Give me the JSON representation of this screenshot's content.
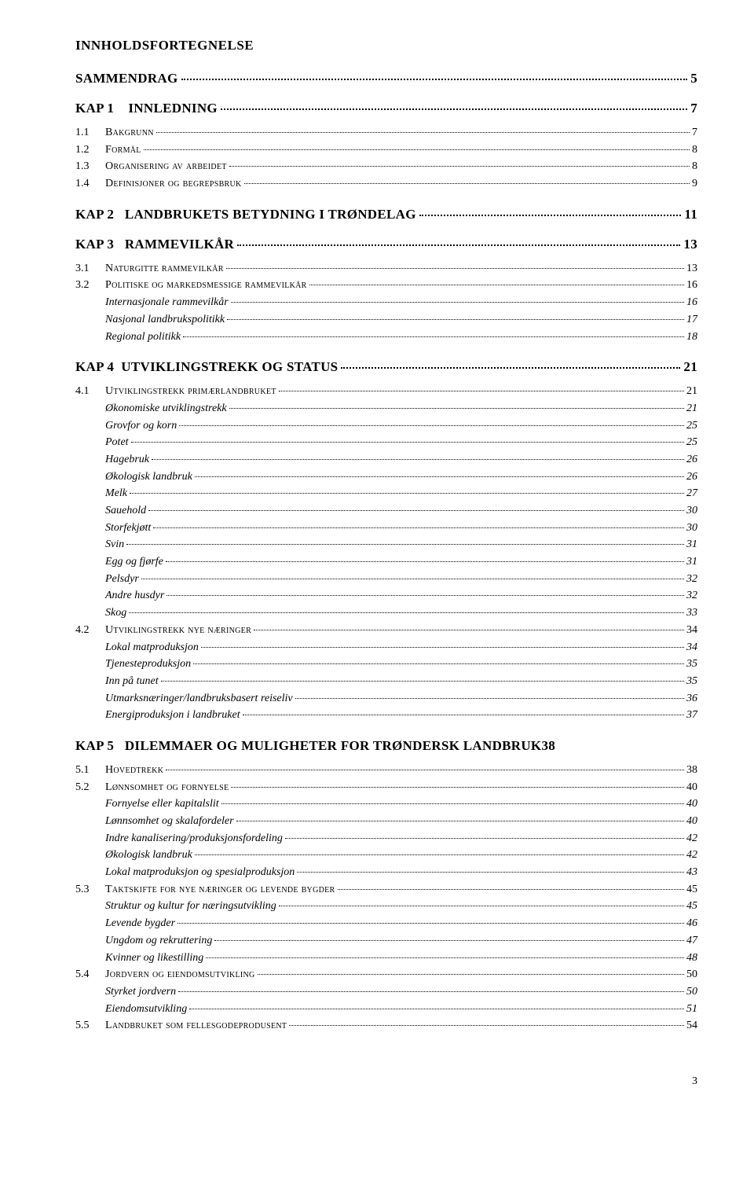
{
  "title": "INNHOLDSFORTEGNELSE",
  "sections": [
    {
      "kap_label": "SAMMENDRAG",
      "kap_full": "SAMMENDRAG",
      "page": "5",
      "plain": true,
      "entries": []
    },
    {
      "kap_label": "KAP 1    INNLEDNING",
      "page": "7",
      "entries": [
        {
          "type": "sec",
          "num": "1.1",
          "label_sc": "Bakgrunn",
          "page": "7"
        },
        {
          "type": "sec",
          "num": "1.2",
          "label_sc": "Formål",
          "page": "8"
        },
        {
          "type": "sec",
          "num": "1.3",
          "label_sc": "Organisering av arbeidet",
          "page": "8"
        },
        {
          "type": "sec",
          "num": "1.4",
          "label_sc": "Definisjoner og begrepsbruk",
          "page": "9"
        }
      ]
    },
    {
      "kap_label": "KAP 2   LANDBRUKETS BETYDNING I TRØNDELAG",
      "page": "11",
      "entries": []
    },
    {
      "kap_label": "KAP 3   RAMMEVILKÅR",
      "page": "13",
      "entries": [
        {
          "type": "sec",
          "num": "3.1",
          "label_sc": "Naturgitte rammevilkår",
          "page": "13"
        },
        {
          "type": "sec",
          "num": "3.2",
          "label_sc": "Politiske og markedsmessige rammevilkår",
          "page": "16"
        },
        {
          "type": "sub",
          "label": "Internasjonale rammevilkår",
          "page": "16"
        },
        {
          "type": "sub",
          "label": "Nasjonal landbrukspolitikk",
          "page": "17"
        },
        {
          "type": "sub",
          "label": "Regional politikk",
          "page": "18"
        }
      ]
    },
    {
      "kap_label": "KAP 4  UTVIKLINGSTREKK OG STATUS",
      "page": "21",
      "entries": [
        {
          "type": "sec",
          "num": "4.1",
          "label_sc": "Utviklingstrekk primærlandbruket",
          "page": "21"
        },
        {
          "type": "sub",
          "label": "Økonomiske utviklingstrekk",
          "page": "21"
        },
        {
          "type": "sub",
          "label": "Grovfor og korn",
          "page": "25"
        },
        {
          "type": "sub",
          "label": "Potet",
          "page": "25"
        },
        {
          "type": "sub",
          "label": "Hagebruk",
          "page": "26"
        },
        {
          "type": "sub",
          "label": "Økologisk landbruk",
          "page": "26"
        },
        {
          "type": "sub",
          "label": "Melk",
          "page": "27"
        },
        {
          "type": "sub",
          "label": "Sauehold",
          "page": "30"
        },
        {
          "type": "sub",
          "label": "Storfekjøtt",
          "page": "30"
        },
        {
          "type": "sub",
          "label": "Svin",
          "page": "31"
        },
        {
          "type": "sub",
          "label": "Egg og fjørfe",
          "page": "31"
        },
        {
          "type": "sub",
          "label": "Pelsdyr",
          "page": "32"
        },
        {
          "type": "sub",
          "label": "Andre husdyr",
          "page": "32"
        },
        {
          "type": "sub",
          "label": "Skog",
          "page": "33"
        },
        {
          "type": "sec",
          "num": "4.2",
          "label_sc": "Utviklingstrekk nye næringer",
          "page": "34"
        },
        {
          "type": "sub",
          "label": "Lokal matproduksjon",
          "page": "34"
        },
        {
          "type": "sub",
          "label": "Tjenesteproduksjon",
          "page": "35"
        },
        {
          "type": "sub",
          "label": "Inn på tunet",
          "page": "35"
        },
        {
          "type": "sub",
          "label": "Utmarksnæringer/landbruksbasert reiseliv",
          "page": "36"
        },
        {
          "type": "sub",
          "label": "Energiproduksjon i landbruket",
          "page": "37"
        }
      ]
    },
    {
      "kap_label": "KAP 5   DILEMMAER OG MULIGHETER FOR TRØNDERSK LANDBRUK",
      "page": "38",
      "nodots": true,
      "entries": [
        {
          "type": "sec",
          "num": "5.1",
          "label_sc": "Hovedtrekk",
          "page": "38"
        },
        {
          "type": "sec",
          "num": "5.2",
          "label_sc": "Lønnsomhet og fornyelse",
          "page": "40"
        },
        {
          "type": "sub",
          "label": "Fornyelse eller kapitalslit",
          "page": "40"
        },
        {
          "type": "sub",
          "label": "Lønnsomhet og skalafordeler",
          "page": "40"
        },
        {
          "type": "sub",
          "label": "Indre kanalisering/produksjonsfordeling",
          "page": "42"
        },
        {
          "type": "sub",
          "label": "Økologisk landbruk",
          "page": "42"
        },
        {
          "type": "sub",
          "label": "Lokal matproduksjon og spesialproduksjon",
          "page": "43"
        },
        {
          "type": "sec",
          "num": "5.3",
          "label_sc": "Taktskifte for nye næringer og levende bygder",
          "page": "45"
        },
        {
          "type": "sub",
          "label": "Struktur og kultur for næringsutvikling",
          "page": "45"
        },
        {
          "type": "sub",
          "label": "Levende bygder",
          "page": "46"
        },
        {
          "type": "sub",
          "label": "Ungdom og rekruttering",
          "page": "47"
        },
        {
          "type": "sub",
          "label": "Kvinner og likestilling",
          "page": "48"
        },
        {
          "type": "sec",
          "num": "5.4",
          "label_sc": "Jordvern og eiendomsutvikling",
          "page": "50"
        },
        {
          "type": "sub",
          "label": "Styrket jordvern",
          "page": "50"
        },
        {
          "type": "sub",
          "label": "Eiendomsutvikling",
          "page": "51"
        },
        {
          "type": "sec",
          "num": "5.5",
          "label_sc": "Landbruket som fellesgodeprodusent",
          "page": "54"
        }
      ]
    }
  ],
  "footer_page": "3"
}
